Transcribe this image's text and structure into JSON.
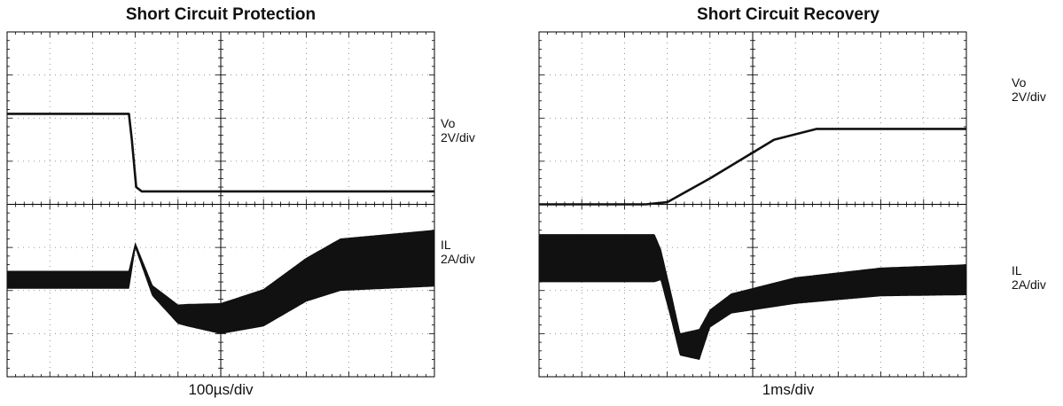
{
  "chart_data": [
    {
      "type": "line",
      "title": "Short Circuit Protection",
      "xlabel": "100µs/div",
      "divisions": {
        "x": 10,
        "y": 8
      },
      "grid": true,
      "series": [
        {
          "name": "Vo",
          "scale": "2V/div",
          "points": [
            [
              0,
              6.1
            ],
            [
              2.85,
              6.1
            ],
            [
              2.92,
              5.5
            ],
            [
              3.02,
              4.4
            ],
            [
              3.15,
              4.3
            ],
            [
              10,
              4.3
            ]
          ]
        },
        {
          "name": "IL",
          "scale": "2A/div",
          "baseline": [
            [
              0,
              2.25
            ],
            [
              2.85,
              2.25
            ],
            [
              3.0,
              3.05
            ],
            [
              3.4,
              2.0
            ],
            [
              4.0,
              1.45
            ],
            [
              5.0,
              1.35
            ],
            [
              6.0,
              1.6
            ],
            [
              7.0,
              2.25
            ],
            [
              7.8,
              2.6
            ],
            [
              10,
              2.75
            ]
          ],
          "ripple_amplitude": [
            [
              0,
              0.2
            ],
            [
              2.85,
              0.2
            ],
            [
              3.0,
              0.05
            ],
            [
              3.3,
              0.1
            ],
            [
              4.2,
              0.25
            ],
            [
              5.0,
              0.35
            ],
            [
              7.0,
              0.5
            ],
            [
              7.8,
              0.6
            ],
            [
              10,
              0.65
            ]
          ]
        }
      ]
    },
    {
      "type": "line",
      "title": "Short Circuit Recovery",
      "xlabel": "1ms/div",
      "divisions": {
        "x": 10,
        "y": 8
      },
      "grid": true,
      "series": [
        {
          "name": "Vo",
          "scale": "2V/div",
          "points": [
            [
              0,
              4.0
            ],
            [
              2.5,
              4.0
            ],
            [
              3.0,
              4.05
            ],
            [
              4.0,
              4.6
            ],
            [
              5.5,
              5.5
            ],
            [
              6.5,
              5.75
            ],
            [
              10,
              5.75
            ]
          ]
        },
        {
          "name": "IL",
          "scale": "2A/div",
          "baseline": [
            [
              0,
              2.75
            ],
            [
              2.7,
              2.75
            ],
            [
              2.85,
              2.6
            ],
            [
              3.1,
              1.6
            ],
            [
              3.3,
              0.75
            ],
            [
              3.75,
              0.75
            ],
            [
              4.0,
              1.35
            ],
            [
              4.5,
              1.7
            ],
            [
              6.0,
              2.0
            ],
            [
              8.0,
              2.2
            ],
            [
              10,
              2.25
            ]
          ],
          "ripple_amplitude": [
            [
              0,
              0.55
            ],
            [
              2.7,
              0.55
            ],
            [
              2.85,
              0.35
            ],
            [
              3.3,
              0.25
            ],
            [
              3.75,
              0.35
            ],
            [
              4.0,
              0.2
            ],
            [
              6.0,
              0.3
            ],
            [
              10,
              0.35
            ]
          ]
        }
      ]
    }
  ],
  "labels": {
    "left": {
      "vo_name": "Vo",
      "vo_scale": "2V/div",
      "il_name": "IL",
      "il_scale": "2A/div"
    },
    "right": {
      "vo_name": "Vo",
      "vo_scale": "2V/div",
      "il_name": "IL",
      "il_scale": "2A/div"
    }
  }
}
